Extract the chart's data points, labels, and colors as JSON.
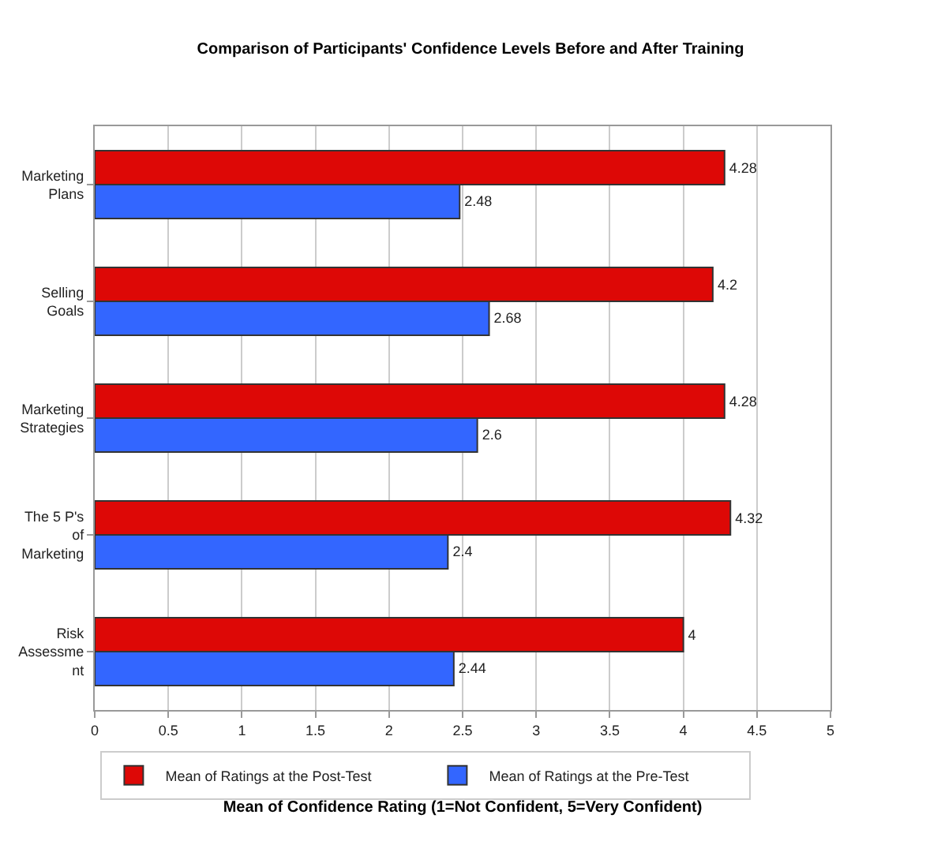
{
  "chart_data": {
    "type": "bar",
    "orientation": "horizontal",
    "title": "Comparison of Participants' Confidence Levels Before and After Training",
    "xlabel": "Mean of Confidence Rating (1=Not Confident, 5=Very Confident)",
    "categories": [
      "Marketing\nPlans",
      "Selling\nGoals",
      "Marketing\nStrategies",
      "The 5 P's\nof\nMarketing",
      "Risk\nAssessme\nnt"
    ],
    "series": [
      {
        "name": "Mean of Ratings at the Post-Test",
        "color": "#dd0806",
        "values": [
          4.28,
          4.2,
          4.28,
          4.32,
          4
        ]
      },
      {
        "name": "Mean of Ratings at the Pre-Test",
        "color": "#3366ff",
        "values": [
          2.48,
          2.68,
          2.6,
          2.4,
          2.44
        ]
      }
    ],
    "xlim": [
      0,
      5
    ],
    "xticks": [
      0,
      0.5,
      1,
      1.5,
      2,
      2.5,
      3,
      3.5,
      4,
      4.5,
      5
    ],
    "grid": "x",
    "legend": "bottom",
    "data_labels": true
  }
}
